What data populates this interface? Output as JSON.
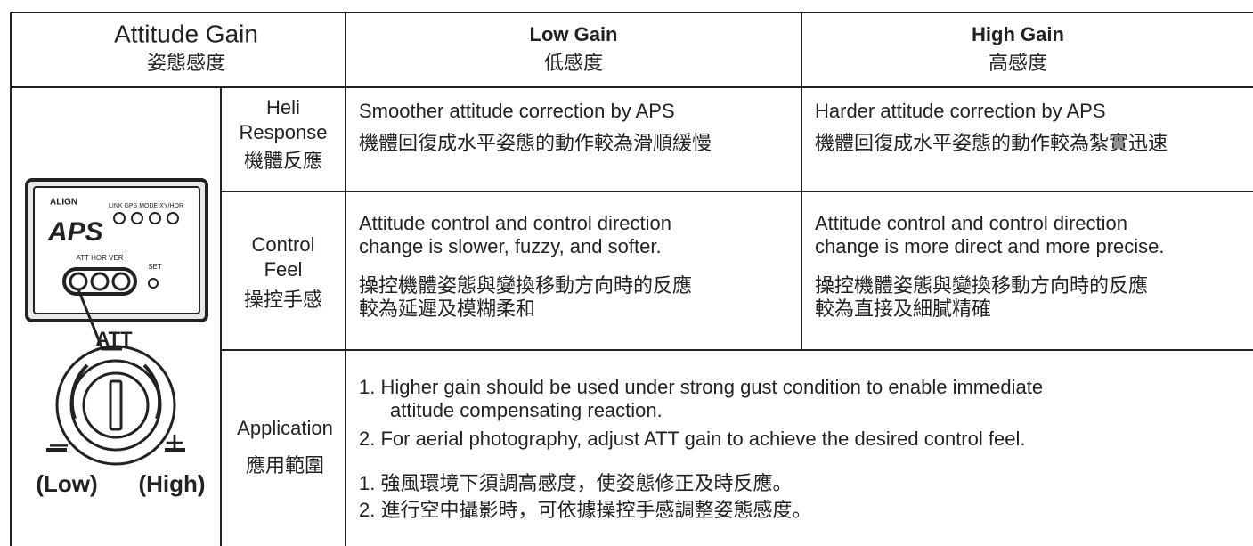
{
  "header": {
    "title": "Attitude Gain",
    "title_zh": "姿態感度"
  },
  "columns": [
    {
      "title": "Low Gain",
      "subtitle": "低感度"
    },
    {
      "title": "High Gain",
      "subtitle": "高感度"
    }
  ],
  "rows": [
    {
      "label": [
        "Heli",
        "Response",
        "機體反應"
      ],
      "low": [
        "Smoother attitude correction by APS",
        "機體回復成水平姿態的動作較為滑順緩慢"
      ],
      "high": [
        "Harder attitude correction by APS",
        "機體回復成水平姿態的動作較為紮實迅速"
      ]
    },
    {
      "label": [
        "Control",
        "Feel",
        "操控手感"
      ],
      "low": [
        "Attitude control and control direction",
        "change is slower, fuzzy, and softer.",
        "操控機體姿態與變換移動方向時的反應",
        "較為延遲及模糊柔和"
      ],
      "high": [
        "Attitude control and control direction",
        "change is more direct and more precise.",
        "操控機體姿態與變換移動方向時的反應",
        "較為直接及細膩精確"
      ]
    }
  ],
  "application": {
    "label": [
      "Application",
      "應用範圍"
    ],
    "lines": [
      "1. Higher gain should be used under strong gust condition to enable immediate",
      "attitude compensating reaction.",
      "2. For aerial photography, adjust ATT gain to achieve the desired control feel.",
      "1. 強風環境下須調高感度，使姿態修正及時反應。",
      "2. 進行空中攝影時，可依據操控手感調整姿態感度。"
    ]
  },
  "device": {
    "brand": "ALIGN",
    "logo": "APS",
    "indicators": "LINK GPS MODE XY/HOR",
    "knobs": "ATT HOR VER",
    "set": "SET",
    "knob_label": "ATT",
    "minus": "–",
    "plus": "+",
    "low": "(Low)",
    "high": "(High)"
  }
}
